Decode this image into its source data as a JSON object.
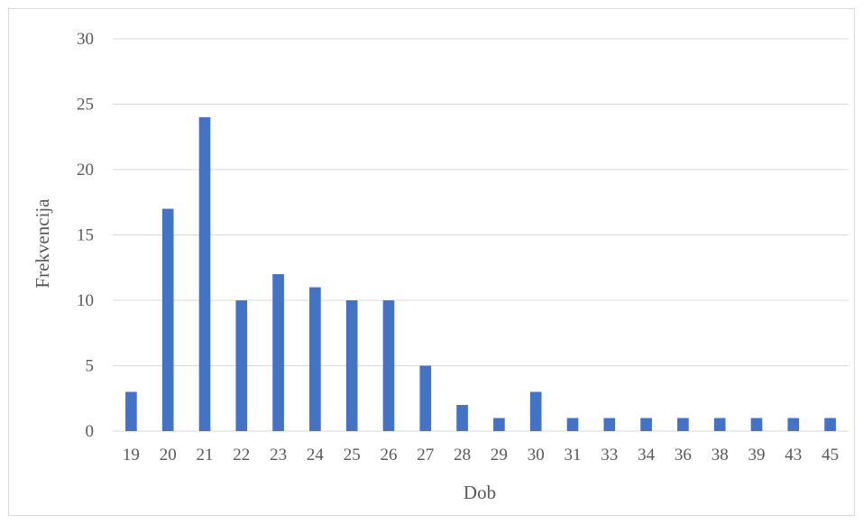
{
  "chart_data": {
    "type": "bar",
    "title": "",
    "xlabel": "Dob",
    "ylabel": "Frekvencija",
    "categories": [
      "19",
      "20",
      "21",
      "22",
      "23",
      "24",
      "25",
      "26",
      "27",
      "28",
      "29",
      "30",
      "31",
      "33",
      "34",
      "36",
      "38",
      "39",
      "43",
      "45"
    ],
    "series": [
      {
        "values": [
          3,
          17,
          24,
          10,
          12,
          11,
          10,
          10,
          5,
          2,
          1,
          3,
          1,
          1,
          1,
          1,
          1,
          1,
          1,
          1
        ]
      }
    ],
    "ylim": [
      0,
      30
    ],
    "yticks": [
      "0",
      "5",
      "10",
      "15",
      "20",
      "25",
      "30"
    ],
    "grid": true,
    "legend": "none",
    "bar_color": "#4472c4",
    "grid_color": "#d9d9d9"
  }
}
